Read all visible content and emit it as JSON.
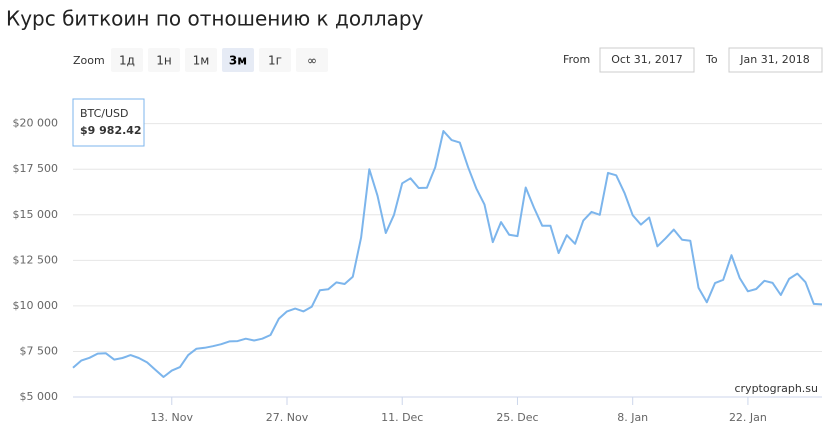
{
  "title": "Курс биткоин по отношению к доллару",
  "zoom": {
    "label": "Zoom",
    "options": [
      "1д",
      "1н",
      "1м",
      "3м",
      "1г",
      "∞"
    ],
    "selected": 3
  },
  "range": {
    "from_label": "From",
    "from": "Oct 31, 2017",
    "to_label": "To",
    "to": "Jan 31, 2018"
  },
  "tooltip": {
    "series": "BTC/USD",
    "value": "$9 982.42"
  },
  "credit": "cryptograph.su",
  "chart_data": {
    "type": "line",
    "x": [
      "2017-11-01",
      "2017-11-02",
      "2017-11-03",
      "2017-11-04",
      "2017-11-05",
      "2017-11-06",
      "2017-11-07",
      "2017-11-08",
      "2017-11-09",
      "2017-11-10",
      "2017-11-11",
      "2017-11-12",
      "2017-11-13",
      "2017-11-14",
      "2017-11-15",
      "2017-11-16",
      "2017-11-17",
      "2017-11-18",
      "2017-11-19",
      "2017-11-20",
      "2017-11-21",
      "2017-11-22",
      "2017-11-23",
      "2017-11-24",
      "2017-11-25",
      "2017-11-26",
      "2017-11-27",
      "2017-11-28",
      "2017-11-29",
      "2017-11-30",
      "2017-12-01",
      "2017-12-02",
      "2017-12-03",
      "2017-12-04",
      "2017-12-05",
      "2017-12-06",
      "2017-12-07",
      "2017-12-08",
      "2017-12-09",
      "2017-12-10",
      "2017-12-11",
      "2017-12-12",
      "2017-12-13",
      "2017-12-14",
      "2017-12-15",
      "2017-12-16",
      "2017-12-17",
      "2017-12-18",
      "2017-12-19",
      "2017-12-20",
      "2017-12-21",
      "2017-12-22",
      "2017-12-23",
      "2017-12-24",
      "2017-12-25",
      "2017-12-26",
      "2017-12-27",
      "2017-12-28",
      "2017-12-29",
      "2017-12-30",
      "2017-12-31",
      "2018-01-01",
      "2018-01-02",
      "2018-01-03",
      "2018-01-04",
      "2018-01-05",
      "2018-01-06",
      "2018-01-07",
      "2018-01-08",
      "2018-01-09",
      "2018-01-10",
      "2018-01-11",
      "2018-01-12",
      "2018-01-13",
      "2018-01-14",
      "2018-01-15",
      "2018-01-16",
      "2018-01-17",
      "2018-01-18",
      "2018-01-19",
      "2018-01-20",
      "2018-01-21",
      "2018-01-22",
      "2018-01-23",
      "2018-01-24",
      "2018-01-25",
      "2018-01-26",
      "2018-01-27",
      "2018-01-28",
      "2018-01-29",
      "2018-01-30",
      "2018-01-31"
    ],
    "series": [
      {
        "name": "BTC/USD",
        "color": "#7cb5ec",
        "values": [
          6600,
          7000,
          7150,
          7380,
          7400,
          7050,
          7140,
          7300,
          7140,
          6900,
          6500,
          6100,
          6450,
          6640,
          7300,
          7650,
          7700,
          7790,
          7900,
          8050,
          8070,
          8200,
          8100,
          8200,
          8400,
          9290,
          9700,
          9850,
          9700,
          9950,
          10860,
          10910,
          11290,
          11200,
          11600,
          13750,
          17500,
          16050,
          14000,
          15000,
          16730,
          17000,
          16470,
          16480,
          17600,
          19600,
          19100,
          18960,
          17610,
          16450,
          15560,
          13500,
          14600,
          13900,
          13830,
          16500,
          15400,
          14400,
          14400,
          12900,
          13880,
          13410,
          14680,
          15160,
          15000,
          17300,
          17170,
          16200,
          14980,
          14460,
          14850,
          13270,
          13710,
          14190,
          13630,
          13580,
          11000,
          10200,
          11250,
          11430,
          12780,
          11530,
          10800,
          10930,
          11380,
          11260,
          10600,
          11480,
          11770,
          11300,
          10110,
          10080
        ]
      }
    ],
    "xlim": [
      "2017-11-01",
      "2018-01-31"
    ],
    "xticks": [
      {
        "value": "2017-11-13",
        "label": "13. Nov"
      },
      {
        "value": "2017-11-27",
        "label": "27. Nov"
      },
      {
        "value": "2017-12-11",
        "label": "11. Dec"
      },
      {
        "value": "2017-12-25",
        "label": "25. Dec"
      },
      {
        "value": "2018-01-08",
        "label": "8. Jan"
      },
      {
        "value": "2018-01-22",
        "label": "22. Jan"
      }
    ],
    "ylim": [
      5000,
      21300
    ],
    "yticks": [
      {
        "value": 5000,
        "label": "$5 000"
      },
      {
        "value": 7500,
        "label": "$7 500"
      },
      {
        "value": 10000,
        "label": "$10 000"
      },
      {
        "value": 12500,
        "label": "$12 500"
      },
      {
        "value": 15000,
        "label": "$15 000"
      },
      {
        "value": 17500,
        "label": "$17 500"
      },
      {
        "value": 20000,
        "label": "$20 000"
      }
    ],
    "grid": true
  }
}
